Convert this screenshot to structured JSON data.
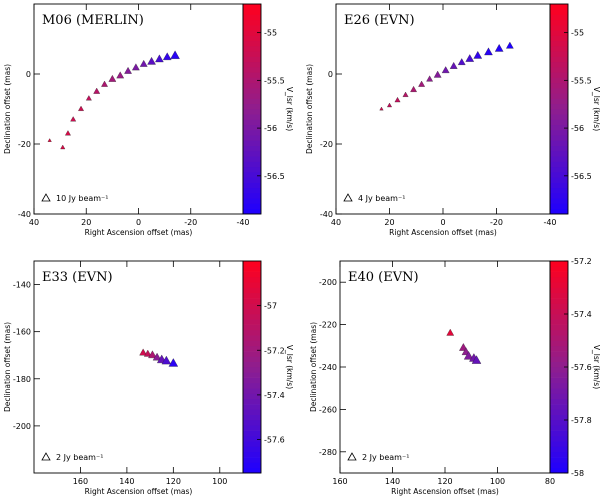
{
  "chart_data": [
    {
      "type": "scatter",
      "title": "M06 (MERLIN)",
      "xlabel": "Right Ascension offset (mas)",
      "ylabel": "Declination offset (mas)",
      "xlim": [
        40,
        -40
      ],
      "ylim": [
        -40,
        20
      ],
      "xticks": [
        40,
        20,
        0,
        -20,
        -40
      ],
      "yticks": [
        -40,
        -20,
        0
      ],
      "colorbar": {
        "label": "V_lsr (km/s)",
        "range": [
          -56.9,
          -54.7
        ],
        "ticks": [
          -55,
          -55.5,
          -56,
          -56.5
        ]
      },
      "beam_label": "10 Jy beam⁻¹",
      "points": [
        {
          "x": 34,
          "y": -19,
          "v": -55.0,
          "s": 2
        },
        {
          "x": 29,
          "y": -21,
          "v": -55.1,
          "s": 2.5
        },
        {
          "x": 27,
          "y": -17,
          "v": -55.1,
          "s": 3
        },
        {
          "x": 25,
          "y": -13,
          "v": -55.2,
          "s": 3
        },
        {
          "x": 22,
          "y": -10,
          "v": -55.2,
          "s": 3
        },
        {
          "x": 19,
          "y": -7,
          "v": -55.3,
          "s": 3
        },
        {
          "x": 16,
          "y": -5,
          "v": -55.4,
          "s": 3.5
        },
        {
          "x": 13,
          "y": -3,
          "v": -55.5,
          "s": 3.5
        },
        {
          "x": 10,
          "y": -1.5,
          "v": -55.6,
          "s": 4
        },
        {
          "x": 7,
          "y": -0.5,
          "v": -55.7,
          "s": 4
        },
        {
          "x": 4,
          "y": 0.8,
          "v": -55.9,
          "s": 4
        },
        {
          "x": 1,
          "y": 1.8,
          "v": -56.0,
          "s": 4
        },
        {
          "x": -2,
          "y": 2.8,
          "v": -56.1,
          "s": 4
        },
        {
          "x": -5,
          "y": 3.5,
          "v": -56.3,
          "s": 4.5
        },
        {
          "x": -8,
          "y": 4.2,
          "v": -56.5,
          "s": 4.5
        },
        {
          "x": -11,
          "y": 4.8,
          "v": -56.7,
          "s": 4.5
        },
        {
          "x": -14,
          "y": 5.2,
          "v": -56.8,
          "s": 5
        }
      ]
    },
    {
      "type": "scatter",
      "title": "E26 (EVN)",
      "xlabel": "Right Ascension offset (mas)",
      "ylabel": "Declination offset (mas)",
      "xlim": [
        40,
        -40
      ],
      "ylim": [
        -40,
        20
      ],
      "xticks": [
        40,
        20,
        0,
        -20,
        -40
      ],
      "yticks": [
        -40,
        -20,
        0
      ],
      "colorbar": {
        "label": "V_lsr (km/s)",
        "range": [
          -56.9,
          -54.7
        ],
        "ticks": [
          -55,
          -55.5,
          -56,
          -56.5
        ]
      },
      "beam_label": "4 Jy beam⁻¹",
      "points": [
        {
          "x": 23,
          "y": -10,
          "v": -55.2,
          "s": 2
        },
        {
          "x": 20,
          "y": -9,
          "v": -55.3,
          "s": 2.5
        },
        {
          "x": 17,
          "y": -7.5,
          "v": -55.3,
          "s": 3
        },
        {
          "x": 14,
          "y": -6,
          "v": -55.4,
          "s": 3
        },
        {
          "x": 11,
          "y": -4.5,
          "v": -55.5,
          "s": 3.5
        },
        {
          "x": 8,
          "y": -3,
          "v": -55.6,
          "s": 3.5
        },
        {
          "x": 5,
          "y": -1.5,
          "v": -55.8,
          "s": 3.5
        },
        {
          "x": 2,
          "y": -0.3,
          "v": -55.9,
          "s": 4
        },
        {
          "x": -1,
          "y": 1,
          "v": -56.1,
          "s": 4
        },
        {
          "x": -4,
          "y": 2.2,
          "v": -56.2,
          "s": 4
        },
        {
          "x": -7,
          "y": 3.3,
          "v": -56.4,
          "s": 4
        },
        {
          "x": -10,
          "y": 4.3,
          "v": -56.5,
          "s": 4.5
        },
        {
          "x": -13,
          "y": 5.2,
          "v": -56.7,
          "s": 4.5
        },
        {
          "x": -17,
          "y": 6.2,
          "v": -56.8,
          "s": 4.5
        },
        {
          "x": -21,
          "y": 7.2,
          "v": -56.85,
          "s": 4.5
        },
        {
          "x": -25,
          "y": 8.0,
          "v": -56.9,
          "s": 4
        }
      ]
    },
    {
      "type": "scatter",
      "title": "E33 (EVN)",
      "xlabel": "Right Ascension offset (mas)",
      "ylabel": "Declination offset (mas)",
      "xlim": [
        180,
        90
      ],
      "ylim": [
        -220,
        -130
      ],
      "xticks": [
        160,
        140,
        120,
        100
      ],
      "yticks": [
        -140,
        -160,
        -180,
        -200
      ],
      "colorbar": {
        "label": "V_lsr (km/s)",
        "range": [
          -57.75,
          -56.8
        ],
        "ticks": [
          -57,
          -57.2,
          -57.4,
          -57.6
        ]
      },
      "beam_label": "2 Jy beam⁻¹",
      "points": [
        {
          "x": 133,
          "y": -169,
          "v": -57.0,
          "s": 4
        },
        {
          "x": 131,
          "y": -169.5,
          "v": -57.05,
          "s": 4
        },
        {
          "x": 129,
          "y": -170,
          "v": -57.15,
          "s": 4.5
        },
        {
          "x": 127,
          "y": -171,
          "v": -57.3,
          "s": 4.5
        },
        {
          "x": 125,
          "y": -172,
          "v": -57.45,
          "s": 5
        },
        {
          "x": 123,
          "y": -172.5,
          "v": -57.55,
          "s": 5
        },
        {
          "x": 120,
          "y": -173.5,
          "v": -57.7,
          "s": 5
        }
      ]
    },
    {
      "type": "scatter",
      "title": "E40 (EVN)",
      "xlabel": "Right Ascension offset (mas)",
      "ylabel": "Declination offset (mas)",
      "xlim": [
        160,
        80
      ],
      "ylim": [
        -290,
        -190
      ],
      "xticks": [
        160,
        140,
        120,
        100,
        80
      ],
      "yticks": [
        -200,
        -220,
        -240,
        -260,
        -280
      ],
      "colorbar": {
        "label": "V_lsr (km/s)",
        "range": [
          -58.0,
          -57.2
        ],
        "ticks": [
          -57.2,
          -57.4,
          -57.6,
          -57.8,
          -58
        ]
      },
      "beam_label": "2 Jy beam⁻¹",
      "points": [
        {
          "x": 118,
          "y": -224,
          "v": -57.3,
          "s": 4
        },
        {
          "x": 113,
          "y": -231,
          "v": -57.55,
          "s": 4.5
        },
        {
          "x": 112,
          "y": -233,
          "v": -57.6,
          "s": 4.5
        },
        {
          "x": 111,
          "y": -235,
          "v": -57.65,
          "s": 5
        },
        {
          "x": 109,
          "y": -236,
          "v": -57.7,
          "s": 5
        },
        {
          "x": 108,
          "y": -237,
          "v": -57.75,
          "s": 5
        }
      ]
    }
  ]
}
